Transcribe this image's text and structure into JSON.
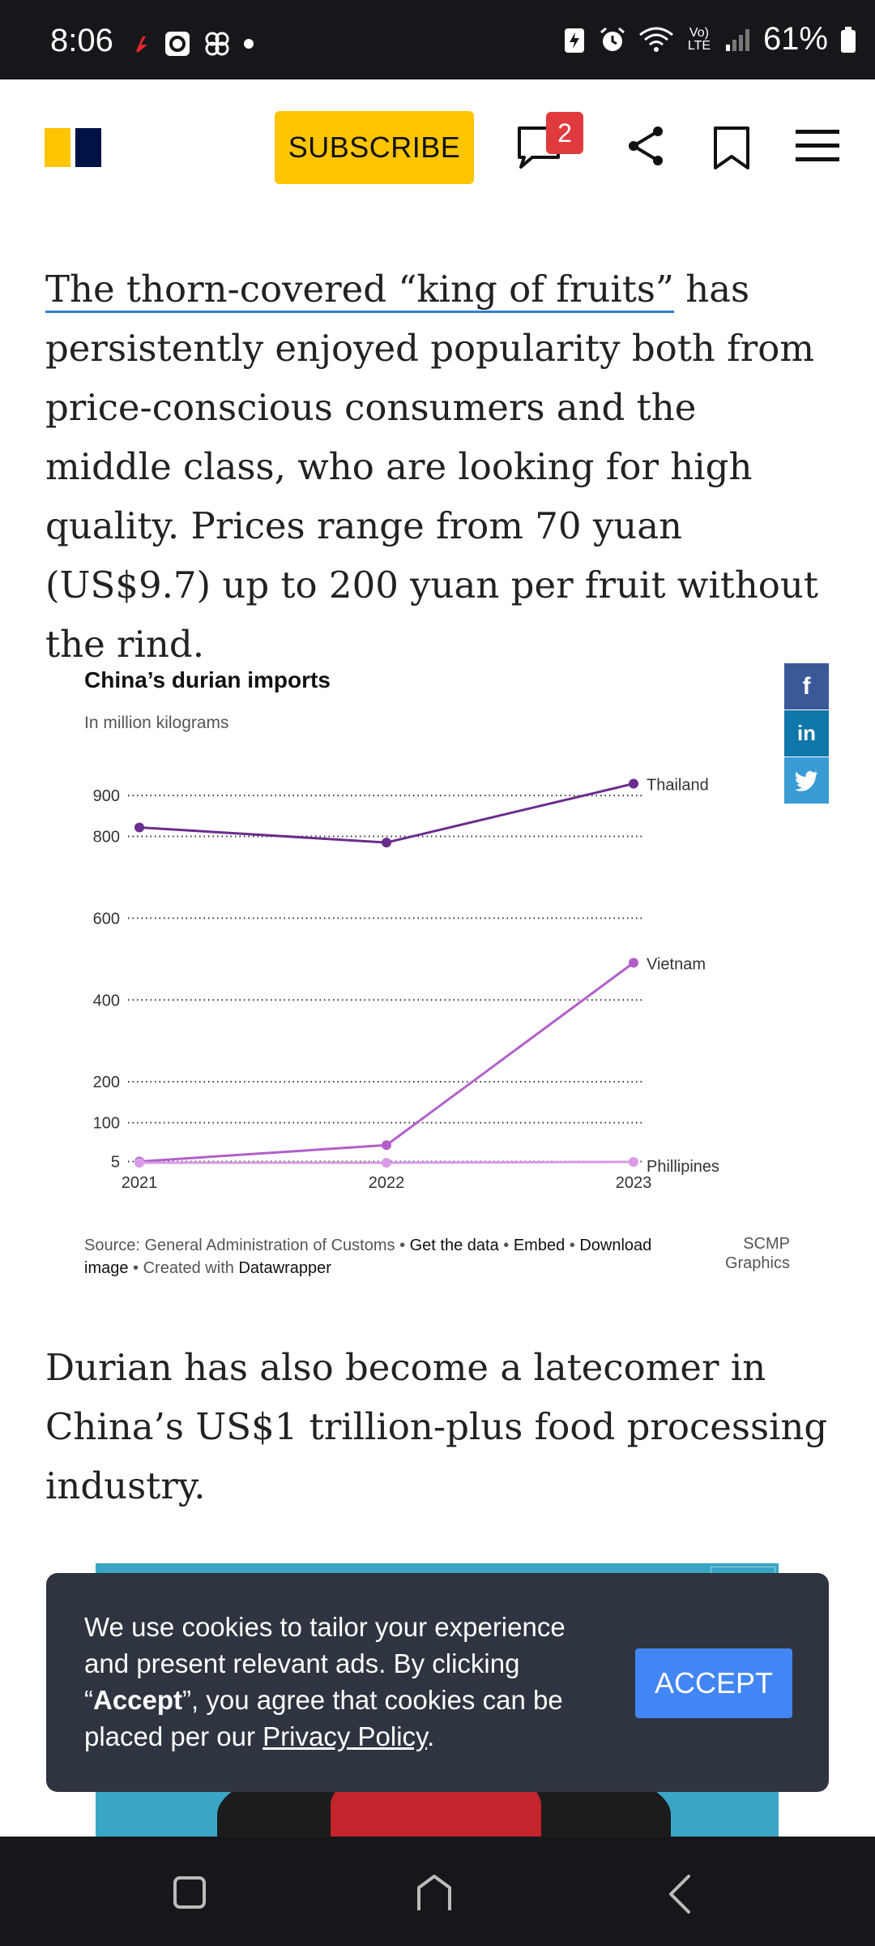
{
  "status_bar": {
    "time": "8:06",
    "battery": "61%",
    "network_label": "Vo) LTE",
    "icons": [
      "flash-app-icon",
      "camera-app-icon",
      "pinwheel-icon",
      "dot-icon",
      "battery-saver-icon",
      "alarm-icon",
      "wifi-icon",
      "signal-icon",
      "battery-icon"
    ]
  },
  "header": {
    "subscribe_label": "SUBSCRIBE",
    "comment_count": "2",
    "icons": [
      "logo",
      "comment-icon",
      "share-icon",
      "bookmark-icon",
      "menu-icon"
    ]
  },
  "article": {
    "para1_link": "The thorn-covered “king of fruits”",
    "para1_rest": " has persistently enjoyed popularity both from price-conscious consumers and the middle class, who are looking for high quality. Prices range from 70 yuan (US$9.7) up to 200 yuan per fruit without the rind.",
    "para2": "Durian has also become a latecomer in China’s US$1 trillion-plus food processing industry."
  },
  "chart_data": {
    "type": "line",
    "title": "China’s durian imports",
    "subtitle": "In million kilograms",
    "x": [
      "2021",
      "2022",
      "2023"
    ],
    "y_ticks": [
      5,
      100,
      200,
      400,
      600,
      800,
      900
    ],
    "ylim": [
      0,
      930
    ],
    "grid": true,
    "series": [
      {
        "name": "Thailand",
        "values": [
          822,
          785,
          929
        ],
        "color": "#6a2c8f"
      },
      {
        "name": "Vietnam",
        "values": [
          5,
          45,
          491
        ],
        "color": "#b25fcb"
      },
      {
        "name": "Phillipines",
        "values": [
          2,
          2,
          4
        ],
        "color": "#d99ae6"
      }
    ],
    "source_prefix": "Source: General Administration of Customs • ",
    "get_data": "Get the data",
    "sep": " • ",
    "embed": "Embed",
    "download": "Download image",
    "created_with": " • Created with ",
    "datawrapper": "Datawrapper",
    "credit_line1": "SCMP",
    "credit_line2": "Graphics"
  },
  "social": {
    "facebook": "f",
    "linkedin": "in",
    "twitter_icon": "twitter-icon",
    "colors": {
      "facebook": "#3b5998",
      "linkedin": "#0e76a8",
      "twitter": "#3a9bd5"
    }
  },
  "cookie_banner": {
    "text_before": "We use cookies to tailor your experience and present relevant ads. By clicking “",
    "accept_bold": "Accept",
    "text_after": "”, you agree that cookies can be placed per our ",
    "privacy_link": "Privacy Policy",
    "period": ".",
    "accept_button": "ACCEPT"
  },
  "nav_bar": {
    "icons": [
      "recents-icon",
      "home-icon",
      "back-icon"
    ]
  }
}
